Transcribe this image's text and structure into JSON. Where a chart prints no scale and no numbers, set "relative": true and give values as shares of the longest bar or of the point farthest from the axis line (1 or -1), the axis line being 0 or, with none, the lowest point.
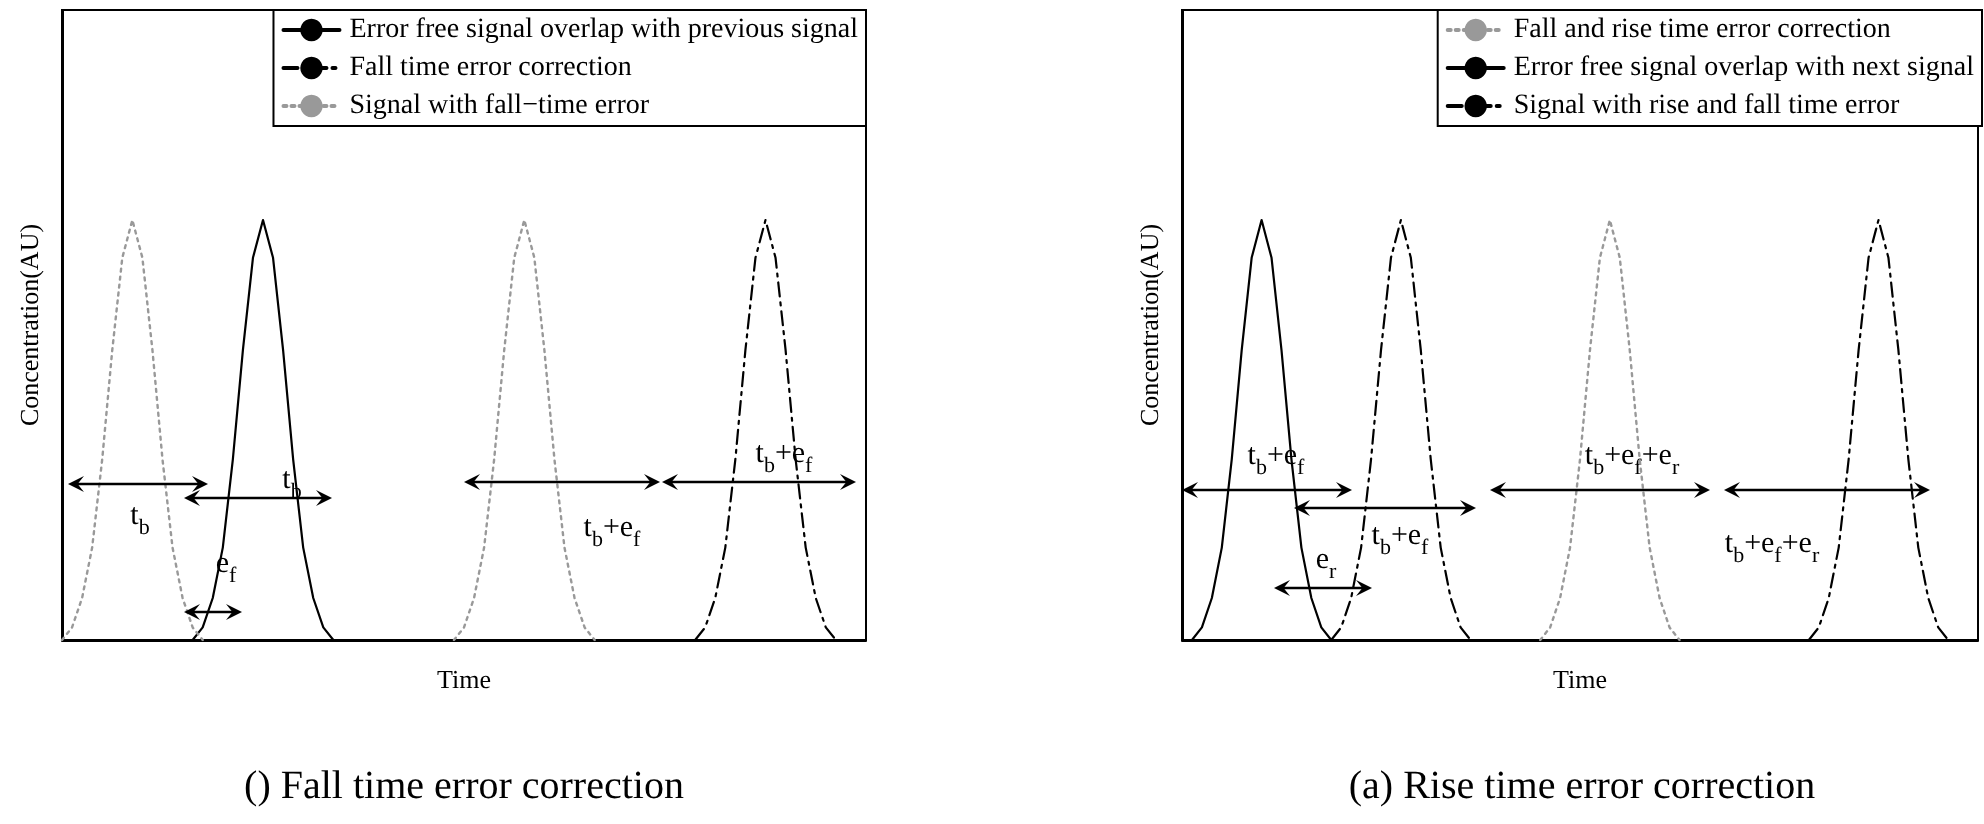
{
  "chart_data": [
    {
      "type": "line",
      "title": "() Fall time error correction",
      "xlabel": "Time",
      "ylabel": "Concentration(AU)",
      "relative": true,
      "grid": false,
      "legend": "top right",
      "categories": [
        null,
        null,
        null,
        null,
        null,
        null,
        null,
        null,
        null,
        null,
        null,
        null,
        null,
        null,
        null,
        null,
        null,
        null,
        null,
        null,
        null,
        null,
        null,
        null,
        null,
        null,
        null,
        null,
        null,
        null,
        null,
        null,
        null,
        null,
        null,
        null,
        null,
        null,
        null,
        null,
        null,
        null,
        null,
        null,
        null,
        null,
        null,
        null,
        null,
        null,
        null,
        null,
        null,
        null,
        null,
        null,
        null,
        null,
        null,
        null,
        null,
        null,
        null,
        null,
        null,
        null,
        null,
        null,
        null,
        null,
        null,
        null,
        null,
        null,
        null,
        null,
        null,
        null,
        null,
        null,
        null
      ],
      "series": [
        {
          "name": "Error free signal overlap with previous signal",
          "color": "#000000",
          "line_style": "solid",
          "values": [
            null,
            null,
            null,
            null,
            null,
            null,
            null,
            null,
            null,
            null,
            null,
            null,
            null,
            0,
            0.03,
            0.1,
            0.22,
            0.43,
            0.69,
            0.91,
            1,
            0.91,
            0.69,
            0.43,
            0.22,
            0.1,
            0.03,
            0,
            null,
            null,
            null,
            null,
            null,
            null,
            null,
            null,
            null,
            null,
            null,
            null,
            null,
            null,
            null,
            null,
            null,
            null,
            null,
            null,
            null,
            null,
            null,
            null,
            null,
            null,
            null,
            null,
            null,
            null,
            null,
            null,
            null,
            null,
            null,
            null,
            null,
            null,
            null,
            null,
            null,
            null,
            null,
            null,
            null,
            null,
            null,
            null,
            null,
            null,
            null,
            null,
            null
          ]
        },
        {
          "name": "Fall time error correction",
          "color": "#000000",
          "line_style": "dashdot",
          "values": [
            null,
            null,
            null,
            null,
            null,
            null,
            null,
            null,
            null,
            null,
            null,
            null,
            null,
            null,
            null,
            null,
            null,
            null,
            null,
            null,
            null,
            null,
            null,
            null,
            null,
            null,
            null,
            null,
            null,
            null,
            null,
            null,
            null,
            null,
            null,
            null,
            null,
            null,
            null,
            null,
            null,
            null,
            null,
            null,
            null,
            null,
            null,
            null,
            null,
            null,
            null,
            null,
            null,
            null,
            null,
            null,
            null,
            null,
            null,
            null,
            null,
            null,
            null,
            0,
            0.03,
            0.1,
            0.22,
            0.43,
            0.69,
            0.91,
            1,
            0.91,
            0.69,
            0.43,
            0.22,
            0.1,
            0.03,
            0,
            null,
            null,
            null
          ]
        },
        {
          "name": "Signal with fall−time error",
          "color": "#999999",
          "line_style": "dotted",
          "values": [
            0,
            0.03,
            0.1,
            0.22,
            0.43,
            0.69,
            0.91,
            1,
            0.91,
            0.69,
            0.43,
            0.22,
            0.1,
            0.03,
            0,
            null,
            null,
            null,
            null,
            null,
            null,
            null,
            null,
            null,
            null,
            null,
            null,
            null,
            null,
            null,
            null,
            null,
            null,
            null,
            null,
            null,
            null,
            null,
            null,
            0,
            0.03,
            0.1,
            0.22,
            0.43,
            0.69,
            0.91,
            1,
            0.91,
            0.69,
            0.43,
            0.22,
            0.1,
            0.03,
            0,
            null,
            null,
            null,
            null,
            null,
            null,
            null,
            null,
            null,
            null,
            null,
            null,
            null,
            null,
            null,
            null,
            null,
            null,
            null,
            null,
            null,
            null,
            null,
            null,
            null,
            null,
            null
          ]
        }
      ],
      "annotations": [
        "t$_{b}$",
        "t$_{b}$",
        "e$_{f}$",
        "t$_{b}$+e$_{f}$",
        "t$_{b}$+e$_{f}$"
      ]
    },
    {
      "type": "line",
      "title": "(a) Rise time error correction",
      "xlabel": "Time",
      "ylabel": "Concentration(AU)",
      "relative": true,
      "grid": false,
      "legend": "top right",
      "categories": [
        null,
        null,
        null,
        null,
        null,
        null,
        null,
        null,
        null,
        null,
        null,
        null,
        null,
        null,
        null,
        null,
        null,
        null,
        null,
        null,
        null,
        null,
        null,
        null,
        null,
        null,
        null,
        null,
        null,
        null,
        null,
        null,
        null,
        null,
        null,
        null,
        null,
        null,
        null,
        null,
        null,
        null,
        null,
        null,
        null,
        null,
        null,
        null,
        null,
        null,
        null,
        null,
        null,
        null,
        null,
        null,
        null,
        null,
        null,
        null,
        null,
        null,
        null,
        null,
        null,
        null,
        null,
        null,
        null,
        null,
        null,
        null,
        null,
        null,
        null,
        null,
        null,
        null,
        null,
        null,
        null
      ],
      "series": [
        {
          "name": "Fall and rise time error correction",
          "color": "#999999",
          "line_style": "dotted",
          "values": [
            null,
            null,
            null,
            null,
            null,
            null,
            null,
            null,
            null,
            null,
            null,
            null,
            null,
            null,
            null,
            null,
            null,
            null,
            null,
            null,
            null,
            null,
            null,
            null,
            null,
            null,
            null,
            null,
            null,
            null,
            null,
            null,
            null,
            null,
            null,
            null,
            0,
            0.03,
            0.1,
            0.22,
            0.43,
            0.69,
            0.91,
            1,
            0.91,
            0.69,
            0.43,
            0.22,
            0.1,
            0.03,
            0,
            null,
            null,
            null,
            null,
            null,
            null,
            null,
            null,
            null,
            null,
            null,
            null,
            null,
            null,
            null,
            null,
            null,
            null,
            null,
            null,
            null,
            null,
            null,
            null,
            null,
            null,
            null,
            null,
            null,
            null
          ]
        },
        {
          "name": "Error free signal overlap with next signal",
          "color": "#000000",
          "line_style": "solid",
          "values": [
            null,
            0,
            0.03,
            0.1,
            0.22,
            0.43,
            0.69,
            0.91,
            1,
            0.91,
            0.69,
            0.43,
            0.22,
            0.1,
            0.03,
            0,
            null,
            null,
            null,
            null,
            null,
            null,
            null,
            null,
            null,
            null,
            null,
            null,
            null,
            null,
            null,
            null,
            null,
            null,
            null,
            null,
            null,
            null,
            null,
            null,
            null,
            null,
            null,
            null,
            null,
            null,
            null,
            null,
            null,
            null,
            null,
            null,
            null,
            null,
            null,
            null,
            null,
            null,
            null,
            null,
            null,
            null,
            null,
            null,
            null,
            null,
            null,
            null,
            null,
            null,
            null,
            null,
            null,
            null,
            null,
            null,
            null,
            null,
            null,
            null,
            null
          ]
        },
        {
          "name": "Signal with rise and fall time error",
          "color": "#000000",
          "line_style": "dashdot",
          "values": [
            null,
            null,
            null,
            null,
            null,
            null,
            null,
            null,
            null,
            null,
            null,
            null,
            null,
            null,
            null,
            0,
            0.03,
            0.1,
            0.22,
            0.43,
            0.69,
            0.91,
            1,
            0.91,
            0.69,
            0.43,
            0.22,
            0.1,
            0.03,
            0,
            null,
            null,
            null,
            null,
            null,
            null,
            null,
            null,
            null,
            null,
            null,
            null,
            null,
            null,
            null,
            null,
            null,
            null,
            null,
            null,
            null,
            null,
            null,
            null,
            null,
            null,
            null,
            null,
            null,
            null,
            null,
            null,
            null,
            0,
            0.03,
            0.1,
            0.22,
            0.43,
            0.69,
            0.91,
            1,
            0.91,
            0.69,
            0.43,
            0.22,
            0.1,
            0.03,
            0,
            null,
            null,
            null
          ]
        }
      ],
      "annotations": [
        "t$_{b}$+e$_{f}$",
        "t$_{b}$+e$_{f}$",
        "e$_{r}$",
        "t$_{b}$+e$_{f}$+e$_{r}$",
        "t$_{b}$+e$_{f}$+e$_{r}$"
      ]
    }
  ]
}
